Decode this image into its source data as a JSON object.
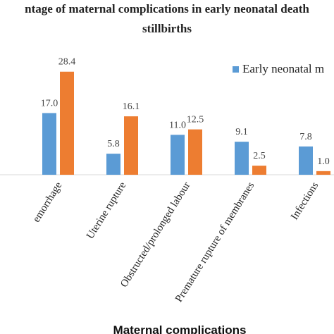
{
  "chart_data": {
    "type": "bar",
    "title": [
      "ntage of maternal complications in early neonatal death",
      "stillbirths"
    ],
    "x_label": "Maternal complications",
    "categories": [
      "emorrhage",
      "Uterine rupture",
      "Obstructed/prolonged labour",
      "Premature rupture of membranes",
      "Infections"
    ],
    "series": [
      {
        "name": "Early neonatal m",
        "color": "#5b9bd5",
        "values": [
          17.0,
          5.8,
          11.0,
          9.1,
          7.8
        ],
        "value_labels": [
          "17.0",
          "5.8",
          "11.0",
          "9.1",
          "7.8"
        ]
      },
      {
        "color": "#ed7d31",
        "values": [
          28.4,
          16.1,
          12.5,
          2.5,
          1.0
        ],
        "value_labels": [
          "28.4",
          "16.1",
          "12.5",
          "2.5",
          "1.0"
        ]
      }
    ]
  }
}
